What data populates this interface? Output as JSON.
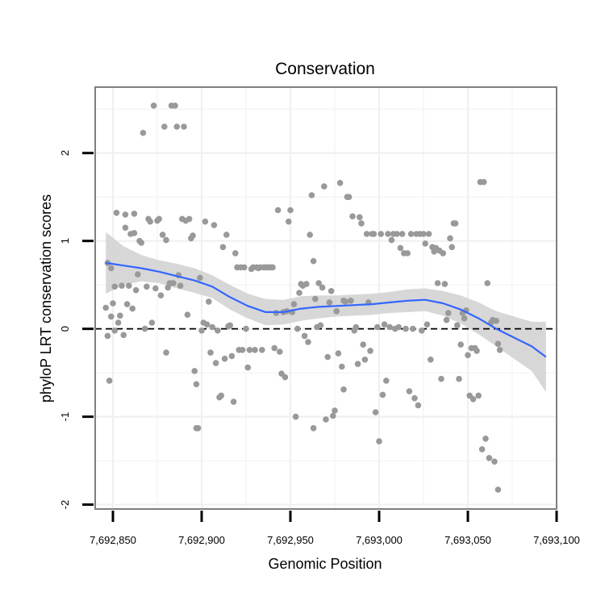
{
  "chart_data": {
    "type": "scatter",
    "title": "Conservation",
    "xlabel": "Genomic Position",
    "ylabel": "phyloP LRT conservation scores",
    "xlim": [
      7692840,
      7693100
    ],
    "ylim": [
      -2.05,
      2.75
    ],
    "x_ticks": [
      7692850,
      7692900,
      7692950,
      7693000,
      7693050,
      7693100
    ],
    "x_tick_labels": [
      "7,692,850",
      "7,692,900",
      "7,692,950",
      "7,693,000",
      "7,693,050",
      "7,693,100"
    ],
    "y_ticks": [
      -2,
      -1,
      0,
      1,
      2
    ],
    "y_tick_labels": [
      "-2",
      "-1",
      "0",
      "1",
      "2"
    ],
    "grid": true,
    "reference_line": {
      "y": 0,
      "style": "dashed",
      "color": "#000000"
    },
    "colors": {
      "points": "#999999",
      "smooth": "#3366ff",
      "band": "#d3d3d3",
      "frame": "#7f7f7f",
      "grid": "#f0f0f0"
    },
    "series": [
      {
        "name": "scores",
        "kind": "points",
        "points": [
          [
            7692846,
            0.24
          ],
          [
            7692847,
            -0.08
          ],
          [
            7692847,
            0.75
          ],
          [
            7692848,
            -0.59
          ],
          [
            7692849,
            0.69
          ],
          [
            7692849,
            0.14
          ],
          [
            7692850,
            0.29
          ],
          [
            7692851,
            0.48
          ],
          [
            7692851,
            -0.02
          ],
          [
            7692852,
            1.32
          ],
          [
            7692853,
            0.07
          ],
          [
            7692854,
            0.15
          ],
          [
            7692855,
            0.49
          ],
          [
            7692856,
            -0.07
          ],
          [
            7692857,
            1.15
          ],
          [
            7692857,
            1.3
          ],
          [
            7692858,
            0.28
          ],
          [
            7692859,
            0.49
          ],
          [
            7692860,
            1.08
          ],
          [
            7692861,
            0.23
          ],
          [
            7692862,
            1.09
          ],
          [
            7692862,
            1.31
          ],
          [
            7692863,
            0.44
          ],
          [
            7692864,
            0.62
          ],
          [
            7692865,
            1.0
          ],
          [
            7692866,
            0.98
          ],
          [
            7692867,
            2.23
          ],
          [
            7692868,
            0.0
          ],
          [
            7692869,
            0.48
          ],
          [
            7692870,
            1.25
          ],
          [
            7692871,
            1.22
          ],
          [
            7692872,
            0.07
          ],
          [
            7692873,
            2.54
          ],
          [
            7692874,
            0.46
          ],
          [
            7692875,
            1.23
          ],
          [
            7692876,
            1.25
          ],
          [
            7692877,
            0.38
          ],
          [
            7692878,
            1.07
          ],
          [
            7692879,
            2.3
          ],
          [
            7692880,
            -0.27
          ],
          [
            7692880,
            1.01
          ],
          [
            7692881,
            0.47
          ],
          [
            7692882,
            0.52
          ],
          [
            7692883,
            2.54
          ],
          [
            7692884,
            0.52
          ],
          [
            7692885,
            2.54
          ],
          [
            7692886,
            2.3
          ],
          [
            7692887,
            0.61
          ],
          [
            7692888,
            0.49
          ],
          [
            7692889,
            1.25
          ],
          [
            7692890,
            2.3
          ],
          [
            7692891,
            1.23
          ],
          [
            7692892,
            0.16
          ],
          [
            7692893,
            1.25
          ],
          [
            7692894,
            1.03
          ],
          [
            7692895,
            1.06
          ],
          [
            7692896,
            -0.48
          ],
          [
            7692897,
            -0.63
          ],
          [
            7692897,
            -1.13
          ],
          [
            7692898,
            -1.13
          ],
          [
            7692899,
            0.58
          ],
          [
            7692900,
            -0.02
          ],
          [
            7692901,
            0.07
          ],
          [
            7692902,
            1.22
          ],
          [
            7692903,
            0.05
          ],
          [
            7692904,
            0.31
          ],
          [
            7692905,
            -0.27
          ],
          [
            7692906,
            0.02
          ],
          [
            7692907,
            1.18
          ],
          [
            7692908,
            -0.39
          ],
          [
            7692909,
            -0.02
          ],
          [
            7692910,
            -0.78
          ],
          [
            7692911,
            -0.76
          ],
          [
            7692912,
            0.93
          ],
          [
            7692913,
            -0.34
          ],
          [
            7692914,
            1.07
          ],
          [
            7692915,
            0.03
          ],
          [
            7692916,
            0.04
          ],
          [
            7692917,
            -0.31
          ],
          [
            7692918,
            -0.83
          ],
          [
            7692919,
            0.86
          ],
          [
            7692920,
            0.7
          ],
          [
            7692921,
            -0.24
          ],
          [
            7692922,
            0.7
          ],
          [
            7692923,
            -0.24
          ],
          [
            7692924,
            0.7
          ],
          [
            7692925,
            0.0
          ],
          [
            7692926,
            -0.44
          ],
          [
            7692927,
            -0.24
          ],
          [
            7692928,
            0.68
          ],
          [
            7692929,
            0.7
          ],
          [
            7692930,
            -0.24
          ],
          [
            7692931,
            0.7
          ],
          [
            7692932,
            0.69
          ],
          [
            7692933,
            0.7
          ],
          [
            7692934,
            -0.24
          ],
          [
            7692935,
            0.7
          ],
          [
            7692936,
            0.7
          ],
          [
            7692937,
            0.7
          ],
          [
            7692938,
            0.7
          ],
          [
            7692939,
            0.7
          ],
          [
            7692940,
            0.7
          ],
          [
            7692941,
            -0.22
          ],
          [
            7692942,
            0.18
          ],
          [
            7692943,
            1.35
          ],
          [
            7692944,
            -0.26
          ],
          [
            7692945,
            -0.51
          ],
          [
            7692946,
            0.19
          ],
          [
            7692947,
            -0.55
          ],
          [
            7692948,
            0.2
          ],
          [
            7692949,
            1.22
          ],
          [
            7692950,
            1.35
          ],
          [
            7692951,
            0.19
          ],
          [
            7692952,
            0.28
          ],
          [
            7692953,
            -1.0
          ],
          [
            7692954,
            0.0
          ],
          [
            7692955,
            0.41
          ],
          [
            7692956,
            0.51
          ],
          [
            7692957,
            0.49
          ],
          [
            7692958,
            -0.08
          ],
          [
            7692959,
            0.51
          ],
          [
            7692960,
            -0.15
          ],
          [
            7692961,
            1.07
          ],
          [
            7692962,
            1.52
          ],
          [
            7692963,
            0.77
          ],
          [
            7692963,
            -1.13
          ],
          [
            7692964,
            0.34
          ],
          [
            7692965,
            0.02
          ],
          [
            7692966,
            0.52
          ],
          [
            7692967,
            0.04
          ],
          [
            7692968,
            0.47
          ],
          [
            7692969,
            1.62
          ],
          [
            7692970,
            -1.03
          ],
          [
            7692971,
            -0.32
          ],
          [
            7692972,
            0.3
          ],
          [
            7692973,
            0.43
          ],
          [
            7692974,
            -0.99
          ],
          [
            7692975,
            -0.93
          ],
          [
            7692976,
            0.2
          ],
          [
            7692977,
            -0.28
          ],
          [
            7692978,
            1.66
          ],
          [
            7692979,
            -0.43
          ],
          [
            7692980,
            0.32
          ],
          [
            7692980,
            -0.69
          ],
          [
            7692981,
            0.31
          ],
          [
            7692982,
            1.5
          ],
          [
            7692983,
            1.5
          ],
          [
            7692984,
            0.32
          ],
          [
            7692985,
            1.28
          ],
          [
            7692986,
            -0.02
          ],
          [
            7692987,
            0.02
          ],
          [
            7692988,
            -0.4
          ],
          [
            7692989,
            1.27
          ],
          [
            7692990,
            1.2
          ],
          [
            7692991,
            -0.18
          ],
          [
            7692992,
            -0.35
          ],
          [
            7692993,
            1.08
          ],
          [
            7692994,
            0.3
          ],
          [
            7692995,
            -0.25
          ],
          [
            7692996,
            1.08
          ],
          [
            7692997,
            1.08
          ],
          [
            7692998,
            -0.95
          ],
          [
            7692999,
            0.02
          ],
          [
            7693000,
            -1.28
          ],
          [
            7693001,
            1.08
          ],
          [
            7693002,
            -0.75
          ],
          [
            7693003,
            0.05
          ],
          [
            7693004,
            -0.59
          ],
          [
            7693005,
            1.08
          ],
          [
            7693006,
            0.02
          ],
          [
            7693007,
            1.01
          ],
          [
            7693008,
            1.08
          ],
          [
            7693009,
            0.0
          ],
          [
            7693010,
            1.08
          ],
          [
            7693011,
            0.02
          ],
          [
            7693012,
            0.92
          ],
          [
            7693013,
            1.08
          ],
          [
            7693014,
            0.86
          ],
          [
            7693015,
            0.0
          ],
          [
            7693016,
            0.86
          ],
          [
            7693017,
            -0.71
          ],
          [
            7693018,
            1.08
          ],
          [
            7693019,
            0.0
          ],
          [
            7693020,
            -0.79
          ],
          [
            7693021,
            1.08
          ],
          [
            7693022,
            -0.87
          ],
          [
            7693023,
            1.08
          ],
          [
            7693024,
            -0.02
          ],
          [
            7693025,
            1.08
          ],
          [
            7693026,
            0.97
          ],
          [
            7693027,
            0.05
          ],
          [
            7693028,
            1.08
          ],
          [
            7693029,
            -0.35
          ],
          [
            7693030,
            0.93
          ],
          [
            7693031,
            0.88
          ],
          [
            7693032,
            0.92
          ],
          [
            7693033,
            0.52
          ],
          [
            7693034,
            0.89
          ],
          [
            7693035,
            -0.57
          ],
          [
            7693036,
            0.86
          ],
          [
            7693037,
            0.51
          ],
          [
            7693038,
            0.1
          ],
          [
            7693039,
            0.18
          ],
          [
            7693040,
            1.03
          ],
          [
            7693041,
            0.93
          ],
          [
            7693042,
            1.2
          ],
          [
            7693043,
            1.2
          ],
          [
            7693044,
            0.04
          ],
          [
            7693045,
            -0.57
          ],
          [
            7693046,
            -0.18
          ],
          [
            7693047,
            0.18
          ],
          [
            7693048,
            0.12
          ],
          [
            7693049,
            0.21
          ],
          [
            7693050,
            -0.3
          ],
          [
            7693051,
            -0.76
          ],
          [
            7693052,
            -0.22
          ],
          [
            7693053,
            -0.8
          ],
          [
            7693054,
            -0.22
          ],
          [
            7693055,
            -0.25
          ],
          [
            7693056,
            -0.76
          ],
          [
            7693057,
            1.67
          ],
          [
            7693058,
            -1.37
          ],
          [
            7693059,
            1.67
          ],
          [
            7693060,
            -1.25
          ],
          [
            7693061,
            0.52
          ],
          [
            7693062,
            -1.47
          ],
          [
            7693063,
            0.07
          ],
          [
            7693064,
            0.1
          ],
          [
            7693065,
            -1.51
          ],
          [
            7693066,
            0.09
          ],
          [
            7693067,
            -1.83
          ],
          [
            7693067,
            -0.17
          ],
          [
            7693068,
            -0.24
          ]
        ]
      },
      {
        "name": "loess fit",
        "kind": "smooth",
        "x": [
          7692846,
          7692856,
          7692866,
          7692876,
          7692886,
          7692896,
          7692906,
          7692916,
          7692926,
          7692936,
          7692946,
          7692956,
          7692966,
          7692976,
          7692986,
          7692996,
          7693006,
          7693016,
          7693026,
          7693036,
          7693046,
          7693056,
          7693066,
          7693076,
          7693086,
          7693094
        ],
        "y": [
          0.75,
          0.72,
          0.69,
          0.65,
          0.6,
          0.55,
          0.48,
          0.36,
          0.26,
          0.19,
          0.19,
          0.23,
          0.25,
          0.26,
          0.27,
          0.28,
          0.3,
          0.32,
          0.33,
          0.29,
          0.22,
          0.12,
          0.0,
          -0.1,
          -0.2,
          -0.32
        ],
        "lower": [
          0.4,
          0.5,
          0.54,
          0.52,
          0.46,
          0.41,
          0.35,
          0.22,
          0.12,
          0.04,
          0.05,
          0.09,
          0.12,
          0.14,
          0.15,
          0.16,
          0.18,
          0.19,
          0.2,
          0.15,
          0.06,
          -0.06,
          -0.2,
          -0.34,
          -0.48,
          -0.72
        ],
        "upper": [
          1.1,
          0.94,
          0.84,
          0.78,
          0.74,
          0.69,
          0.61,
          0.5,
          0.4,
          0.34,
          0.33,
          0.37,
          0.38,
          0.38,
          0.39,
          0.4,
          0.42,
          0.45,
          0.46,
          0.43,
          0.38,
          0.3,
          0.2,
          0.14,
          0.08,
          0.08
        ]
      }
    ]
  }
}
